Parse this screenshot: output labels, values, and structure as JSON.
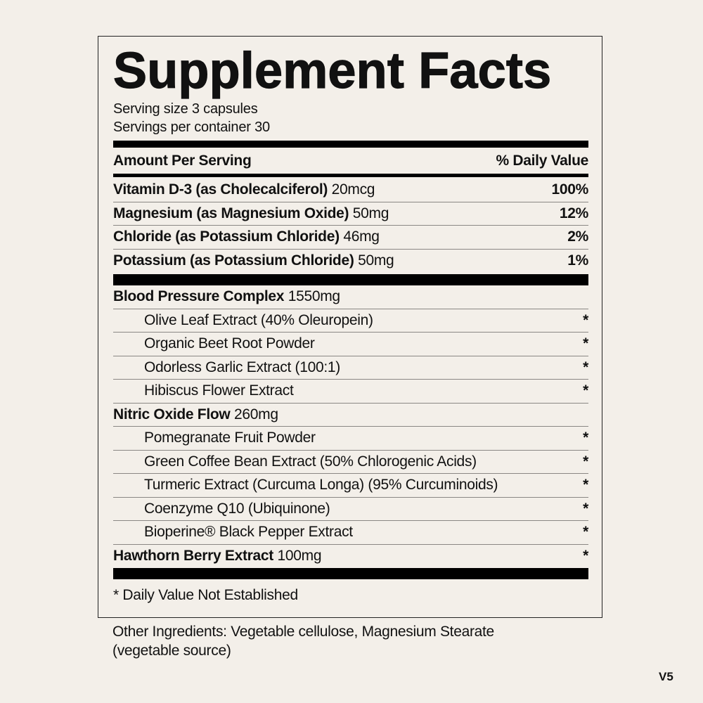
{
  "title": "Supplement Facts",
  "serving_size": "Serving size 3 capsules",
  "servings_per_container": "Servings per container 30",
  "header": {
    "left": "Amount Per Serving",
    "right": "% Daily Value"
  },
  "nutrients": [
    {
      "name": "Vitamin D-3 (as Cholecalciferol)",
      "amount": "20mcg",
      "dv": "100%"
    },
    {
      "name": "Magnesium (as Magnesium Oxide)",
      "amount": "50mg",
      "dv": "12%"
    },
    {
      "name": "Chloride (as Potassium Chloride)",
      "amount": "46mg",
      "dv": "2%"
    },
    {
      "name": "Potassium (as Potassium Chloride)",
      "amount": "50mg",
      "dv": "1%"
    }
  ],
  "blends": [
    {
      "name": "Blood Pressure Complex",
      "amount": "1550mg",
      "items": [
        {
          "name": "Olive Leaf Extract (40% Oleuropein)",
          "dv": "*"
        },
        {
          "name": "Organic Beet Root Powder",
          "dv": "*"
        },
        {
          "name": "Odorless Garlic Extract (100:1)",
          "dv": "*"
        },
        {
          "name": "Hibiscus Flower Extract",
          "dv": "*"
        }
      ]
    },
    {
      "name": "Nitric Oxide Flow",
      "amount": "260mg",
      "items": [
        {
          "name": "Pomegranate Fruit Powder",
          "dv": "*"
        },
        {
          "name": "Green Coffee Bean Extract (50% Chlorogenic Acids)",
          "dv": "*"
        },
        {
          "name": "Turmeric Extract (Curcuma Longa) (95% Curcuminoids)",
          "dv": "*"
        },
        {
          "name": "Coenzyme Q10 (Ubiquinone)",
          "dv": "*"
        },
        {
          "name": "Bioperine® Black Pepper Extract",
          "dv": "*"
        }
      ]
    }
  ],
  "standalone": {
    "name": "Hawthorn Berry Extract",
    "amount": "100mg",
    "dv": "*"
  },
  "footnote": "* Daily Value Not Established",
  "other_ingredients": [
    "Other Ingredients: Vegetable cellulose, Magnesium Stearate",
    "(vegetable source)"
  ],
  "version": "V5"
}
